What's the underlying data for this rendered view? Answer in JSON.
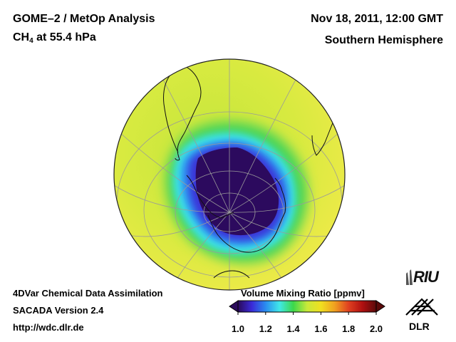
{
  "header": {
    "title": "GOME–2 / MetOp Analysis",
    "species": "CH",
    "species_sub": "4",
    "species_rest": " at 55.4 hPa",
    "datetime": "Nov 18, 2011, 12:00 GMT",
    "region": "Southern Hemisphere"
  },
  "footer": {
    "line1": "4DVar Chemical Data Assimilation",
    "line2": "SACADA Version 2.4",
    "line3": "http://wdc.dlr.de"
  },
  "colorbar": {
    "title": "Volume Mixing Ratio [ppmv]",
    "ticks": [
      "1.0",
      "1.2",
      "1.4",
      "1.6",
      "1.8",
      "2.0"
    ],
    "min": 1.0,
    "max": 2.0,
    "colors": [
      "#2a0a5a",
      "#3a2ad8",
      "#2a8cf0",
      "#40e8e8",
      "#3cd84a",
      "#c8e83a",
      "#f0e020",
      "#f0a020",
      "#e04020",
      "#b01010",
      "#5a0a0a"
    ]
  },
  "logos": {
    "riu": "RIU",
    "dlr": "DLR"
  }
}
